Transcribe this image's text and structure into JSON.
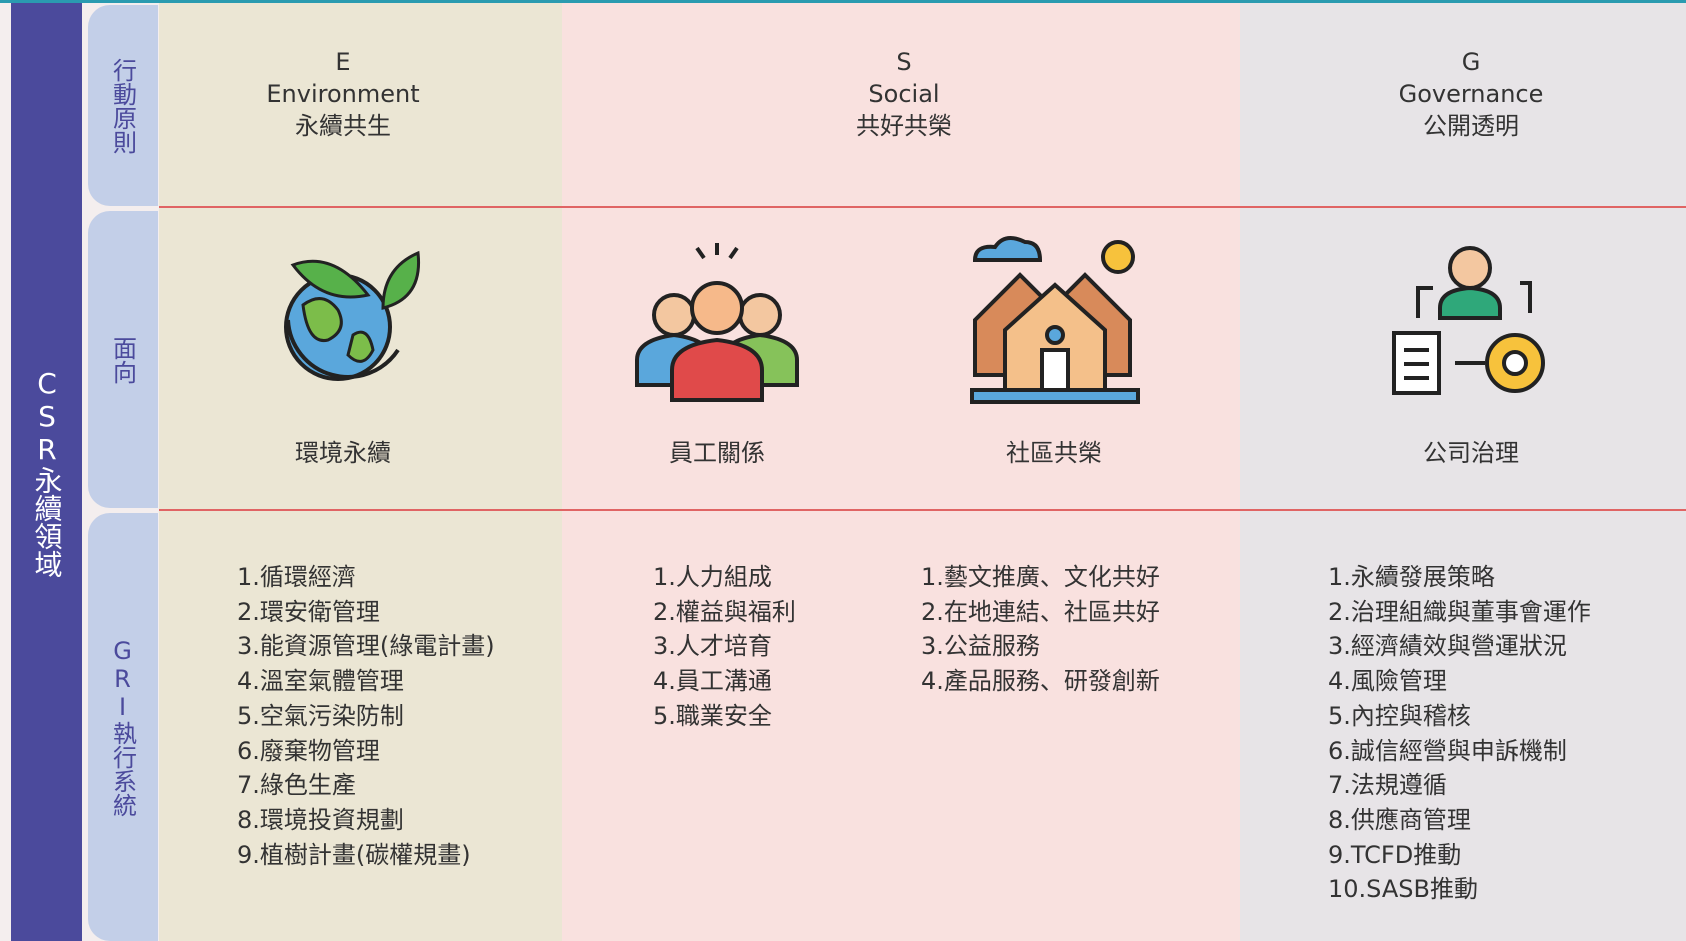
{
  "sidebar": {
    "title": "CSR永續領域"
  },
  "row_labels": [
    "行動原則",
    "面向",
    "GRI執行系統"
  ],
  "pillars": [
    {
      "letter": "E",
      "name": "Environment",
      "motto": "永續共生"
    },
    {
      "letter": "S",
      "name": "Social",
      "motto": "共好共榮"
    },
    {
      "letter": "G",
      "name": "Governance",
      "motto": "公開透明"
    }
  ],
  "aspects": [
    {
      "label": "環境永續",
      "items": [
        "1.循環經濟",
        "2.環安衛管理",
        "3.能資源管理(綠電計畫)",
        "4.溫室氣體管理",
        "5.空氣污染防制",
        "6.廢棄物管理",
        "7.綠色生產",
        "8.環境投資規劃",
        "9.植樹計畫(碳權規畫)"
      ]
    },
    {
      "label": "員工關係",
      "items": [
        "1.人力組成",
        "2.權益與福利",
        "3.人才培育",
        "4.員工溝通",
        "5.職業安全"
      ]
    },
    {
      "label": "社區共榮",
      "items": [
        "1.藝文推廣、文化共好",
        "2.在地連結、社區共好",
        "3.公益服務",
        "4.產品服務、研發創新"
      ]
    },
    {
      "label": "公司治理",
      "items": [
        "1.永續發展策略",
        "2.治理組織與董事會運作",
        "3.經濟績效與營運狀況",
        "4.風險管理",
        "5.內控與稽核",
        "6.誠信經營與申訴機制",
        "7.法規遵循",
        "8.供應商管理",
        "9.TCFD推動",
        "10.SASB推動"
      ]
    }
  ]
}
